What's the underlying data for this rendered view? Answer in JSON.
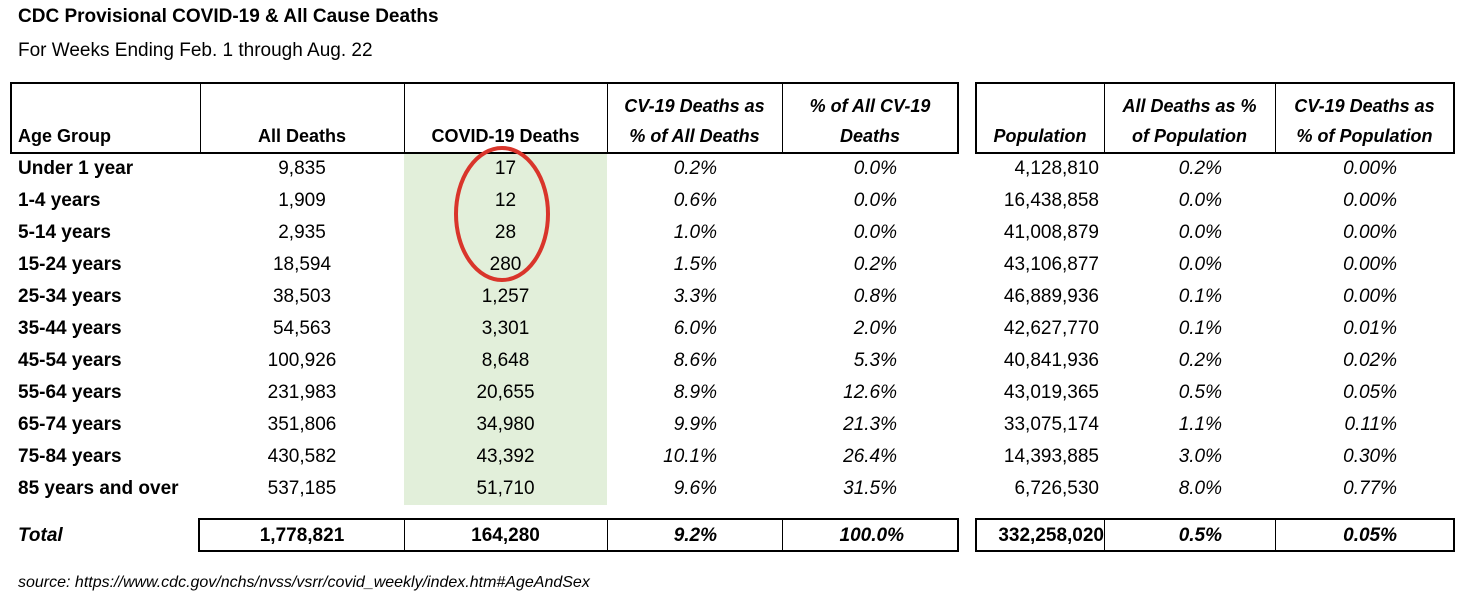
{
  "title": "CDC Provisional COVID-19 & All Cause Deaths",
  "subtitle": "For Weeks Ending Feb. 1 through Aug. 22",
  "headers": {
    "age_group": "Age Group",
    "all_deaths": "All Deaths",
    "covid_deaths": "COVID-19 Deaths",
    "cv_pct_all_1": "CV-19 Deaths as",
    "cv_pct_all_2": "% of All Deaths",
    "pct_all_cv_1": "% of All CV-19",
    "pct_all_cv_2": "Deaths",
    "population": "Population",
    "all_pct_pop_1": "All Deaths as %",
    "all_pct_pop_2": "of Population",
    "cv_pct_pop_1": "CV-19 Deaths as",
    "cv_pct_pop_2": "% of Population"
  },
  "rows": [
    {
      "age": "Under 1 year",
      "all": "9,835",
      "covid": "17",
      "cv_pct_all": "0.2%",
      "pct_all_cv": "0.0%",
      "pop": "4,128,810",
      "all_pct_pop": "0.2%",
      "cv_pct_pop": "0.00%"
    },
    {
      "age": "1-4 years",
      "all": "1,909",
      "covid": "12",
      "cv_pct_all": "0.6%",
      "pct_all_cv": "0.0%",
      "pop": "16,438,858",
      "all_pct_pop": "0.0%",
      "cv_pct_pop": "0.00%"
    },
    {
      "age": "5-14 years",
      "all": "2,935",
      "covid": "28",
      "cv_pct_all": "1.0%",
      "pct_all_cv": "0.0%",
      "pop": "41,008,879",
      "all_pct_pop": "0.0%",
      "cv_pct_pop": "0.00%"
    },
    {
      "age": "15-24 years",
      "all": "18,594",
      "covid": "280",
      "cv_pct_all": "1.5%",
      "pct_all_cv": "0.2%",
      "pop": "43,106,877",
      "all_pct_pop": "0.0%",
      "cv_pct_pop": "0.00%"
    },
    {
      "age": "25-34 years",
      "all": "38,503",
      "covid": "1,257",
      "cv_pct_all": "3.3%",
      "pct_all_cv": "0.8%",
      "pop": "46,889,936",
      "all_pct_pop": "0.1%",
      "cv_pct_pop": "0.00%"
    },
    {
      "age": "35-44 years",
      "all": "54,563",
      "covid": "3,301",
      "cv_pct_all": "6.0%",
      "pct_all_cv": "2.0%",
      "pop": "42,627,770",
      "all_pct_pop": "0.1%",
      "cv_pct_pop": "0.01%"
    },
    {
      "age": "45-54 years",
      "all": "100,926",
      "covid": "8,648",
      "cv_pct_all": "8.6%",
      "pct_all_cv": "5.3%",
      "pop": "40,841,936",
      "all_pct_pop": "0.2%",
      "cv_pct_pop": "0.02%"
    },
    {
      "age": "55-64 years",
      "all": "231,983",
      "covid": "20,655",
      "cv_pct_all": "8.9%",
      "pct_all_cv": "12.6%",
      "pop": "43,019,365",
      "all_pct_pop": "0.5%",
      "cv_pct_pop": "0.05%"
    },
    {
      "age": "65-74 years",
      "all": "351,806",
      "covid": "34,980",
      "cv_pct_all": "9.9%",
      "pct_all_cv": "21.3%",
      "pop": "33,075,174",
      "all_pct_pop": "1.1%",
      "cv_pct_pop": "0.11%"
    },
    {
      "age": "75-84 years",
      "all": "430,582",
      "covid": "43,392",
      "cv_pct_all": "10.1%",
      "pct_all_cv": "26.4%",
      "pop": "14,393,885",
      "all_pct_pop": "3.0%",
      "cv_pct_pop": "0.30%"
    },
    {
      "age": "85 years and over",
      "all": "537,185",
      "covid": "51,710",
      "cv_pct_all": "9.6%",
      "pct_all_cv": "31.5%",
      "pop": "6,726,530",
      "all_pct_pop": "8.0%",
      "cv_pct_pop": "0.77%"
    }
  ],
  "total": {
    "age": "Total",
    "all": "1,778,821",
    "covid": "164,280",
    "cv_pct_all": "9.2%",
    "pct_all_cv": "100.0%",
    "pop": "332,258,020",
    "all_pct_pop": "0.5%",
    "cv_pct_pop": "0.05%"
  },
  "source": "source: https://www.cdc.gov/nchs/nvss/vsrr/covid_weekly/index.htm#AgeAndSex",
  "colors": {
    "highlight_column": "#e2efda",
    "circle": "#d9352b"
  }
}
